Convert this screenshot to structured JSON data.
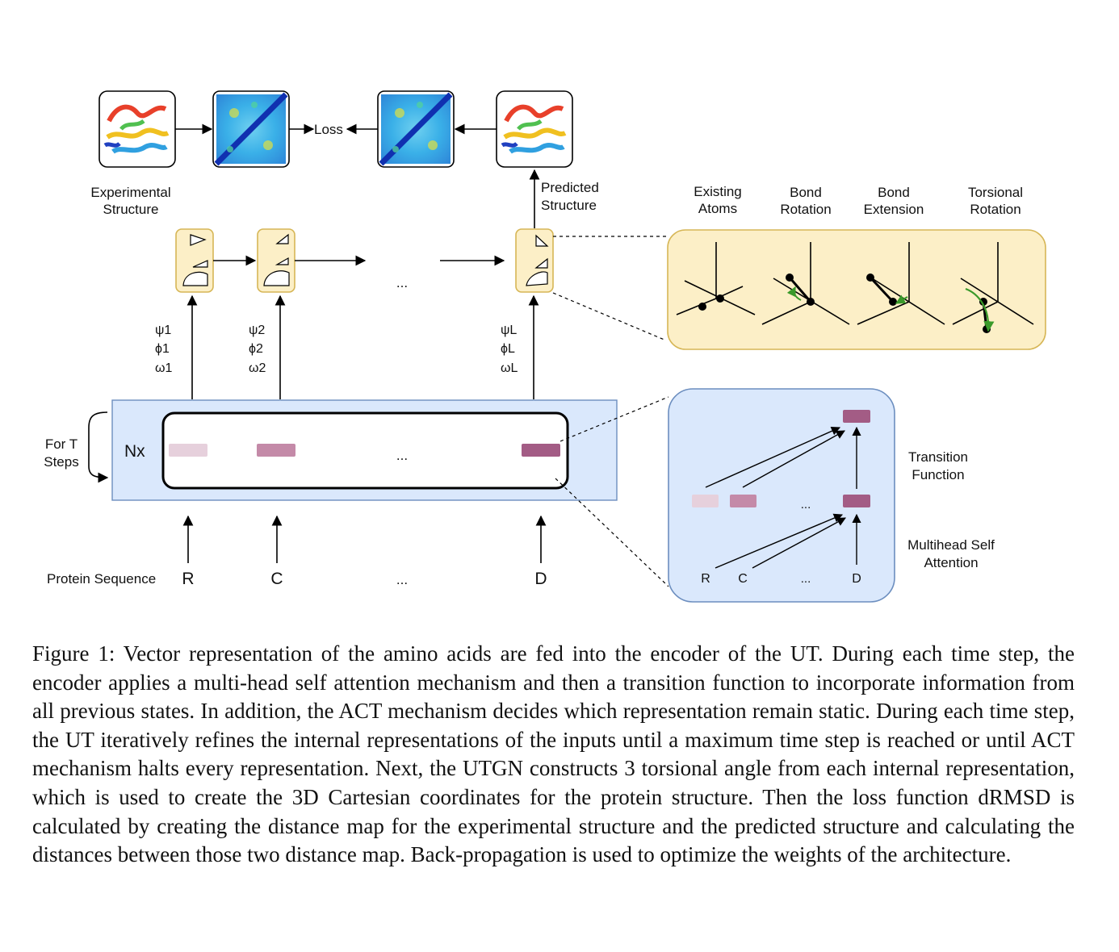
{
  "figure": {
    "top_row": {
      "loss_label": "Loss",
      "experimental_label": [
        "Experimental",
        "Structure"
      ],
      "predicted_label": [
        "Predicted",
        "Structure"
      ]
    },
    "geometry_panel": {
      "headers": [
        [
          "Existing",
          "Atoms"
        ],
        [
          "Bond",
          "Rotation"
        ],
        [
          "Bond",
          "Extension"
        ],
        [
          "Torsional",
          "Rotation"
        ]
      ],
      "colors": {
        "fill": "#fcefc7",
        "stroke": "#d6b656",
        "arrow": "#3a9a2a"
      }
    },
    "angles": [
      [
        "ψ1",
        "ϕ1",
        "ω1"
      ],
      [
        "ψ2",
        "ϕ2",
        "ω2"
      ],
      [
        "ψL",
        "ϕL",
        "ωL"
      ]
    ],
    "ellipsis": "...",
    "encoder": {
      "repeat_label": "Nx",
      "loop_label": [
        "For T",
        "Steps"
      ],
      "colors": {
        "fill": "#dae8fc",
        "stroke": "#6c8ebf",
        "token_light": "#e6d0dc",
        "token_mid": "#c48aa8",
        "token_dark": "#a35c85"
      }
    },
    "sequence": {
      "label": "Protein Sequence",
      "residues": [
        "R",
        "C",
        "D"
      ]
    },
    "detail_panel": {
      "transition_label": [
        "Transition",
        "Function"
      ],
      "attention_label": [
        "Multihead Self",
        "Attention"
      ],
      "residues": [
        "R",
        "C",
        "D"
      ]
    },
    "caption": "Figure 1: Vector representation of the amino acids are fed into the encoder of the UT. During each time step, the encoder applies a multi-head self attention mechanism and then a transition func­tion to incorporate information from all previous states. In addition, the ACT mechanism decides which representation remain static. During each time step, the UT iteratively refines the internal representations of the inputs until a maximum time step is reached or until ACT mechanism halts every representation. Next, the UTGN constructs 3 torsional angle from each internal representa­tion, which is used to create the 3D Cartesian coordinates for the protein structure. Then the loss function dRMSD is calculated by creating the distance map for the experimental structure and the predicted structure and calculating the distances between those two distance map. Back-propagation is used to optimize the weights of the architecture."
  }
}
